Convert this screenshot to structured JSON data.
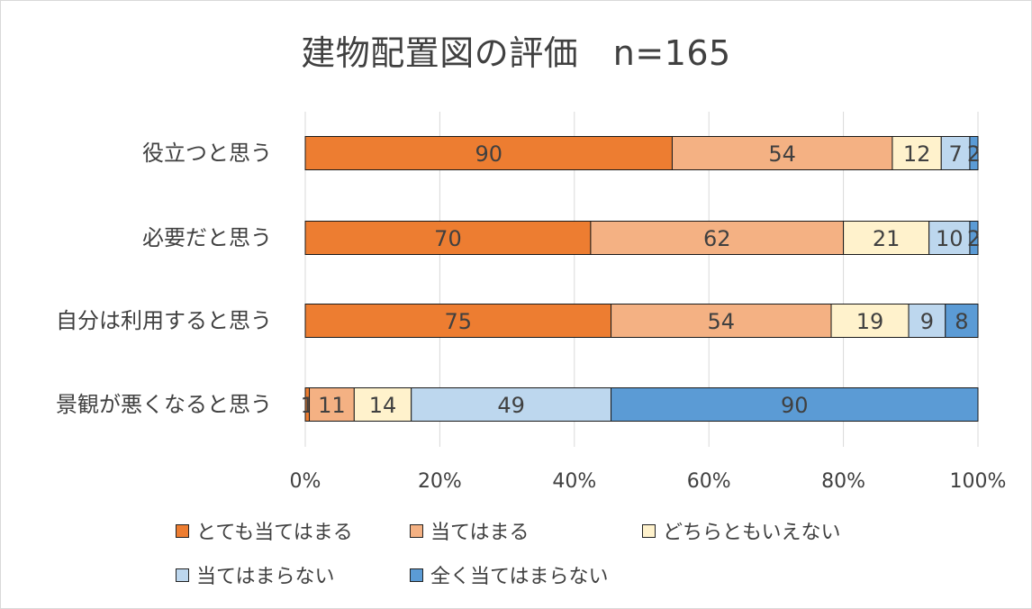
{
  "chart_data": {
    "type": "bar",
    "orientation": "horizontal",
    "stacked": "percent",
    "title": "建物配置図の評価　n=165",
    "categories": [
      "役立つと思う",
      "必要だと思う",
      "自分は利用すると思う",
      "景観が悪くなると思う"
    ],
    "series": [
      {
        "name": "とても当てはまる",
        "color": "#ED7D31",
        "values": [
          90,
          70,
          75,
          1
        ]
      },
      {
        "name": "当てはまる",
        "color": "#F4B183",
        "values": [
          54,
          62,
          54,
          11
        ]
      },
      {
        "name": "どちらともいえない",
        "color": "#FFF2CC",
        "values": [
          12,
          21,
          19,
          14
        ]
      },
      {
        "name": "当てはまらない",
        "color": "#BDD7EE",
        "values": [
          7,
          10,
          9,
          49
        ]
      },
      {
        "name": "全く当てはまらない",
        "color": "#5B9BD5",
        "values": [
          2,
          2,
          8,
          90
        ]
      }
    ],
    "x_ticks": [
      "0%",
      "20%",
      "40%",
      "60%",
      "80%",
      "100%"
    ],
    "xlim": [
      0,
      100
    ],
    "grid": "vertical",
    "legend_position": "bottom"
  }
}
